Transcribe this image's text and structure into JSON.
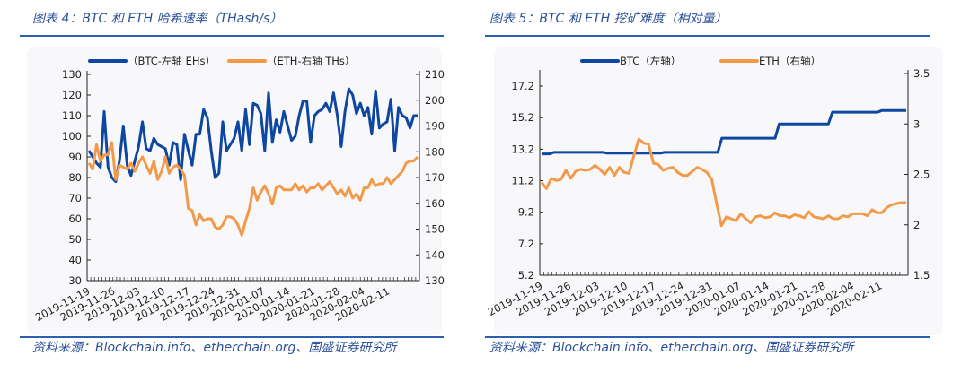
{
  "left": {
    "title": "图表 4：BTC 和 ETH 哈希速率（THash/s）",
    "source": "资料来源：Blockchain.info、etherchain.org、国盛证券研究所"
  },
  "right": {
    "title": "图表 5：BTC 和 ETH 挖矿难度（相对量）",
    "source": "资料来源：Blockchain.info、etherchain.org、国盛证券研究所"
  },
  "chart_data": [
    {
      "type": "line",
      "title": "图表 4：BTC 和 ETH 哈希速率（THash/s）",
      "x_tick_labels": [
        "2019-11-19",
        "2019-11-26",
        "2019-12-03",
        "2019-12-10",
        "2019-12-17",
        "2019-12-24",
        "2019-12-31",
        "2020-01-07",
        "2020-01-14",
        "2020-01-21",
        "2020-01-28",
        "2020-02-04",
        "2020-02-11"
      ],
      "y_left": {
        "ylim": [
          30,
          130
        ],
        "ticks": [
          30,
          40,
          50,
          60,
          70,
          80,
          90,
          100,
          110,
          120,
          130
        ]
      },
      "y_right": {
        "ylim": [
          130,
          210
        ],
        "ticks": [
          130,
          140,
          150,
          160,
          170,
          180,
          190,
          200,
          210
        ]
      },
      "legend_placement": "top",
      "grid": false,
      "series": [
        {
          "name": "（BTC-左轴 EHs）",
          "axis": "left",
          "color": "#0d47a1",
          "values": [
            93,
            90,
            87,
            85,
            112,
            85,
            80,
            78,
            88,
            105,
            86,
            81,
            88,
            95,
            107,
            94,
            93,
            99,
            96,
            95,
            94,
            86,
            97,
            96,
            79,
            101,
            93,
            86,
            101,
            101,
            113,
            109,
            93,
            80,
            82,
            107,
            93,
            96,
            99,
            107,
            93,
            113,
            96,
            116,
            115,
            111,
            93,
            121,
            97,
            108,
            102,
            112,
            105,
            98,
            100,
            110,
            117,
            117,
            97,
            110,
            112,
            113,
            116,
            112,
            121,
            110,
            95,
            112,
            123,
            120,
            111,
            116,
            110,
            114,
            101,
            122,
            104,
            106,
            107,
            118,
            93,
            114,
            110,
            109,
            104,
            110,
            110
          ]
        },
        {
          "name": "（ETH-右轴 THs）",
          "axis": "right",
          "color": "#f29a4a",
          "values": [
            175.6,
            173.2,
            182.8,
            176.4,
            178.8,
            178.8,
            183.6,
            169.2,
            174.8,
            174,
            173.2,
            175.6,
            172.4,
            175.6,
            178,
            174.8,
            171.6,
            176.4,
            169.2,
            172.4,
            178,
            171.6,
            174,
            174.8,
            173.2,
            170.8,
            158,
            157.2,
            151.6,
            155.6,
            153.2,
            154,
            154,
            150.8,
            150,
            151.6,
            154.8,
            154.8,
            154,
            151.6,
            147.6,
            153.2,
            158,
            166,
            161.2,
            164.4,
            166.8,
            163.6,
            159.6,
            166,
            166.8,
            165.2,
            165.2,
            165.2,
            167.6,
            165.2,
            166.8,
            164.4,
            166,
            166,
            167.6,
            165.2,
            166.8,
            168.4,
            166,
            163.6,
            165.2,
            162.8,
            166,
            162,
            163.6,
            161.2,
            166,
            166,
            169.2,
            166.8,
            167.6,
            167.6,
            170,
            167.6,
            169.2,
            170.8,
            172.4,
            175.6,
            176.4,
            176.4,
            178
          ]
        }
      ]
    },
    {
      "type": "line",
      "title": "图表 5：BTC 和 ETH 挖矿难度（相对量）",
      "x_tick_labels": [
        "2019-11-19",
        "2019-11-26",
        "2019-12-03",
        "2019-12-10",
        "2019-12-17",
        "2019-12-24",
        "2019-12-31",
        "2020-01-07",
        "2020-01-14",
        "2020-01-21",
        "2020-01-28",
        "2020-02-04",
        "2020-02-11"
      ],
      "y_left": {
        "ylim": [
          5.2,
          18.0
        ],
        "ticks": [
          5.2,
          7.2,
          9.2,
          11.2,
          13.2,
          15.2,
          17.2
        ]
      },
      "y_right": {
        "ylim": [
          1.5,
          3.5
        ],
        "ticks": [
          1.5,
          2,
          2.5,
          3,
          3.5
        ]
      },
      "legend_placement": "top",
      "grid": false,
      "series": [
        {
          "name": "BTC（左轴）",
          "axis": "left",
          "color": "#0d47a1",
          "values": [
            12.9,
            12.9,
            12.9,
            13.0,
            13.0,
            13.0,
            13.0,
            13.0,
            13.0,
            13.0,
            13.0,
            13.0,
            13.0,
            13.0,
            13.0,
            13.0,
            12.95,
            12.95,
            12.95,
            12.95,
            12.95,
            12.95,
            12.95,
            12.95,
            12.95,
            12.95,
            12.95,
            12.95,
            12.95,
            12.95,
            13.0,
            13.0,
            13.0,
            13.0,
            13.0,
            13.0,
            13.0,
            13.0,
            13.0,
            13.0,
            13.0,
            13.0,
            13.0,
            13.0,
            13.9,
            13.9,
            13.9,
            13.9,
            13.9,
            13.9,
            13.9,
            13.9,
            13.9,
            13.9,
            13.9,
            13.9,
            13.9,
            13.9,
            14.8,
            14.8,
            14.8,
            14.8,
            14.8,
            14.8,
            14.8,
            14.8,
            14.8,
            14.8,
            14.8,
            14.8,
            14.8,
            15.55,
            15.55,
            15.55,
            15.55,
            15.55,
            15.55,
            15.55,
            15.55,
            15.55,
            15.55,
            15.55,
            15.55,
            15.65,
            15.65,
            15.65,
            15.65,
            15.65,
            15.65,
            15.65
          ]
        },
        {
          "name": "ETH（右轴）",
          "axis": "right",
          "color": "#f29a4a",
          "values": [
            2.42,
            2.36,
            2.46,
            2.44,
            2.45,
            2.54,
            2.46,
            2.53,
            2.55,
            2.54,
            2.55,
            2.59,
            2.55,
            2.5,
            2.57,
            2.49,
            2.57,
            2.52,
            2.51,
            2.69,
            2.85,
            2.81,
            2.8,
            2.61,
            2.6,
            2.54,
            2.56,
            2.57,
            2.52,
            2.49,
            2.49,
            2.53,
            2.57,
            2.55,
            2.52,
            2.45,
            2.21,
            1.99,
            2.08,
            2.06,
            2.04,
            2.11,
            2.06,
            2.02,
            2.08,
            2.09,
            2.07,
            2.08,
            2.12,
            2.09,
            2.09,
            2.07,
            2.1,
            2.09,
            2.07,
            2.13,
            2.08,
            2.07,
            2.06,
            2.09,
            2.06,
            2.06,
            2.09,
            2.08,
            2.11,
            2.11,
            2.11,
            2.09,
            2.15,
            2.12,
            2.12,
            2.17,
            2.2,
            2.21,
            2.22,
            2.22
          ]
        }
      ]
    }
  ]
}
